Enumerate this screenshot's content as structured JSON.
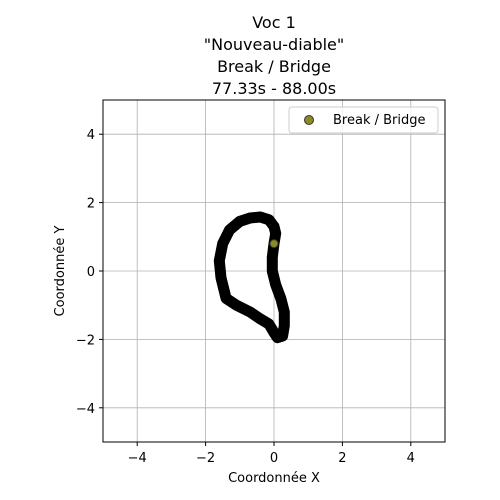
{
  "chart_data": {
    "type": "scatter",
    "title_lines": [
      "Voc 1",
      "\"Nouveau-diable\"",
      "Break / Bridge",
      "77.33s - 88.00s"
    ],
    "xlabel": "Coordonnée X",
    "ylabel": "Coordonnée Y",
    "xlim": [
      -5,
      5
    ],
    "ylim": [
      -5,
      5
    ],
    "xticks": [
      -4,
      -2,
      0,
      2,
      4
    ],
    "yticks": [
      -4,
      -2,
      0,
      2,
      4
    ],
    "xtick_labels": [
      "−4",
      "−2",
      "0",
      "2",
      "4"
    ],
    "ytick_labels": [
      "−4",
      "−2",
      "0",
      "2",
      "4"
    ],
    "grid": true,
    "legend_position": "top-right",
    "trajectory": {
      "color": "#000000",
      "points": [
        [
          0,
          1.3
        ],
        [
          -0.15,
          1.5
        ],
        [
          -0.4,
          1.58
        ],
        [
          -0.7,
          1.55
        ],
        [
          -1.0,
          1.45
        ],
        [
          -1.3,
          1.2
        ],
        [
          -1.5,
          0.8
        ],
        [
          -1.6,
          0.3
        ],
        [
          -1.55,
          -0.2
        ],
        [
          -1.45,
          -0.6
        ],
        [
          -1.4,
          -0.8
        ],
        [
          -1.1,
          -1.0
        ],
        [
          -0.7,
          -1.2
        ],
        [
          -0.4,
          -1.4
        ],
        [
          -0.15,
          -1.55
        ],
        [
          0.0,
          -1.8
        ],
        [
          0.1,
          -1.95
        ],
        [
          0.25,
          -1.9
        ],
        [
          0.3,
          -1.6
        ],
        [
          0.3,
          -1.2
        ],
        [
          0.2,
          -0.8
        ],
        [
          0.05,
          -0.4
        ],
        [
          -0.05,
          0.0
        ],
        [
          -0.05,
          0.4
        ],
        [
          0.0,
          0.8
        ],
        [
          0.05,
          1.1
        ],
        [
          0.0,
          1.3
        ]
      ]
    },
    "series": [
      {
        "name": "Break / Bridge",
        "color": "#8b8b22",
        "edge_color": "#333333",
        "points": [
          [
            0.0,
            0.8
          ]
        ]
      }
    ]
  }
}
